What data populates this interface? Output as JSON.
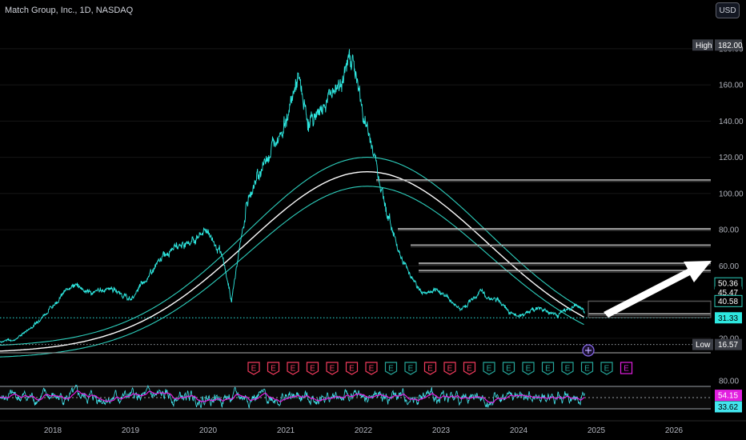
{
  "header": {
    "title": "Match Group, Inc., 1D, NASDAQ",
    "currency": "USD"
  },
  "colors": {
    "price": "#2ee8e0",
    "band": "#2dcfbd",
    "band_mid": "#ffffff",
    "rsi": "#43e6ef",
    "rsi_ma": "#e21fe0",
    "earnings": "#f23b5d",
    "earnings_green": "#26a69a",
    "arrow": "#ffffff"
  },
  "price_axis": {
    "ticks": [
      {
        "value": 20,
        "label": "20.00"
      },
      {
        "value": 40,
        "label": "40.00"
      },
      {
        "value": 60,
        "label": "60.00"
      },
      {
        "value": 80,
        "label": "80.00"
      },
      {
        "value": 100,
        "label": "100.00"
      },
      {
        "value": 120,
        "label": "120.00"
      },
      {
        "value": 140,
        "label": "140.00"
      },
      {
        "value": 160,
        "label": "160.00"
      },
      {
        "value": 180,
        "label": "180.00"
      }
    ],
    "tags": [
      {
        "value": 182,
        "label": "High",
        "text": "182.00",
        "style": "dark"
      },
      {
        "value": 50.36,
        "text": "50.36",
        "style": "outline-cyan"
      },
      {
        "value": 45.47,
        "text": "45.47",
        "style": "black"
      },
      {
        "value": 40.58,
        "text": "40.58",
        "style": "outline-cyan"
      },
      {
        "value": 31.33,
        "text": "31.33",
        "style": "cyan"
      },
      {
        "value": 16.57,
        "label": "Low",
        "text": "16.57",
        "style": "dark"
      }
    ]
  },
  "rsi_axis": {
    "tick": "80.00",
    "tags": [
      {
        "value": 54.15,
        "text": "54.15",
        "style": "magenta"
      },
      {
        "value": 33.62,
        "text": "33.62",
        "style": "cyan"
      }
    ]
  },
  "time_axis": {
    "years": [
      "2018",
      "2019",
      "2020",
      "2021",
      "2022",
      "2023",
      "2024",
      "2025",
      "2026"
    ]
  },
  "chart_data": {
    "type": "line",
    "title": "Match Group, Inc., 1D, NASDAQ",
    "x": [
      2017.0,
      2017.25,
      2017.5,
      2017.75,
      2018.0,
      2018.25,
      2018.5,
      2018.75,
      2019.0,
      2019.25,
      2019.5,
      2019.75,
      2020.0,
      2020.2,
      2020.3,
      2020.5,
      2020.75,
      2021.0,
      2021.15,
      2021.3,
      2021.5,
      2021.75,
      2021.85,
      2022.0,
      2022.15,
      2022.3,
      2022.5,
      2022.75,
      2023.0,
      2023.25,
      2023.5,
      2023.75,
      2024.0,
      2024.25,
      2024.5,
      2024.75,
      2024.85
    ],
    "series": [
      {
        "values": [
          17,
          18,
          19,
          27,
          38,
          50,
          45,
          48,
          41,
          55,
          70,
          73,
          80,
          62,
          41,
          95,
          120,
          140,
          163,
          138,
          150,
          165,
          178,
          143,
          120,
          90,
          63,
          45,
          46,
          36,
          45,
          40,
          32,
          37,
          33,
          38,
          35
        ]
      }
    ],
    "ylim": [
      12,
      187
    ],
    "horizontal_levels": [
      107.5,
      80.5,
      71.5,
      61.5,
      57.5,
      33.5,
      31.33,
      16.57
    ],
    "rsi": {
      "ylim": [
        20,
        80
      ],
      "levels": [
        70,
        54.15,
        50,
        33.62,
        30
      ]
    },
    "earnings_markers": [
      "E",
      "E",
      "E",
      "E",
      "E",
      "E",
      "E",
      "E",
      "E",
      "E",
      "E",
      "E",
      "E",
      "E",
      "E",
      "E",
      "E",
      "E",
      "E",
      "E"
    ]
  }
}
